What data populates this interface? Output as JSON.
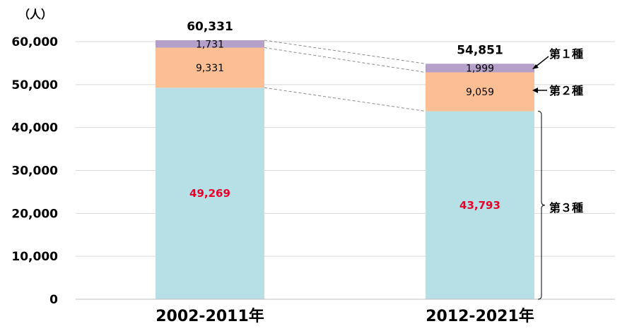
{
  "chart_data": {
    "type": "bar",
    "stacked": true,
    "unit_label": "（人）",
    "categories": [
      "2002-2011年",
      "2012-2021年"
    ],
    "series": [
      {
        "name": "第３種",
        "values": [
          49269,
          43793
        ],
        "color": "#b7dfe6",
        "label_color": "#e8002a"
      },
      {
        "name": "第２種",
        "values": [
          9331,
          9059
        ],
        "color": "#fcbf94",
        "label_color": "#000000"
      },
      {
        "name": "第１種",
        "values": [
          1731,
          1999
        ],
        "color": "#b4a0c8",
        "label_color": "#000000"
      }
    ],
    "totals": [
      "60,331",
      "54,851"
    ],
    "value_labels": [
      [
        "49,269",
        "43,793"
      ],
      [
        "9,331",
        "9,059"
      ],
      [
        "1,731",
        "1,999"
      ]
    ],
    "y_ticks": [
      "0",
      "10,000",
      "20,000",
      "30,000",
      "40,000",
      "50,000",
      "60,000"
    ],
    "ylim": [
      0,
      60000
    ],
    "grid": true,
    "connector_lines": "dashed"
  }
}
